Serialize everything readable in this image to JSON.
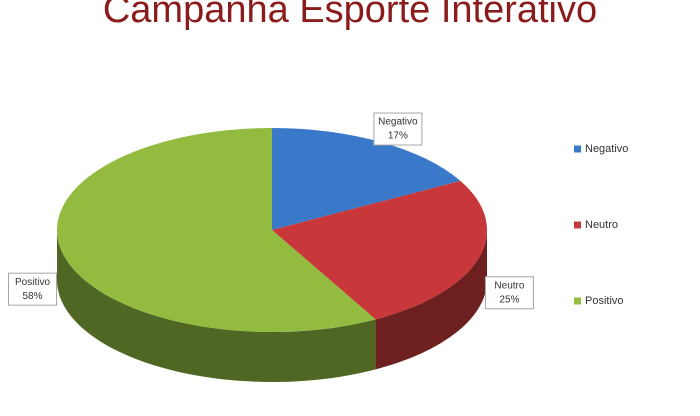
{
  "chart_data": {
    "type": "pie3d",
    "title": "Campanha Esporte Interativo",
    "categories": [
      "Negativo",
      "Neutro",
      "Positivo"
    ],
    "values": [
      17,
      25,
      58
    ],
    "value_labels": [
      "17%",
      "25%",
      "58%"
    ],
    "colors": [
      "#3a78c9",
      "#c8383a",
      "#92bb3f"
    ],
    "legend": "right"
  }
}
